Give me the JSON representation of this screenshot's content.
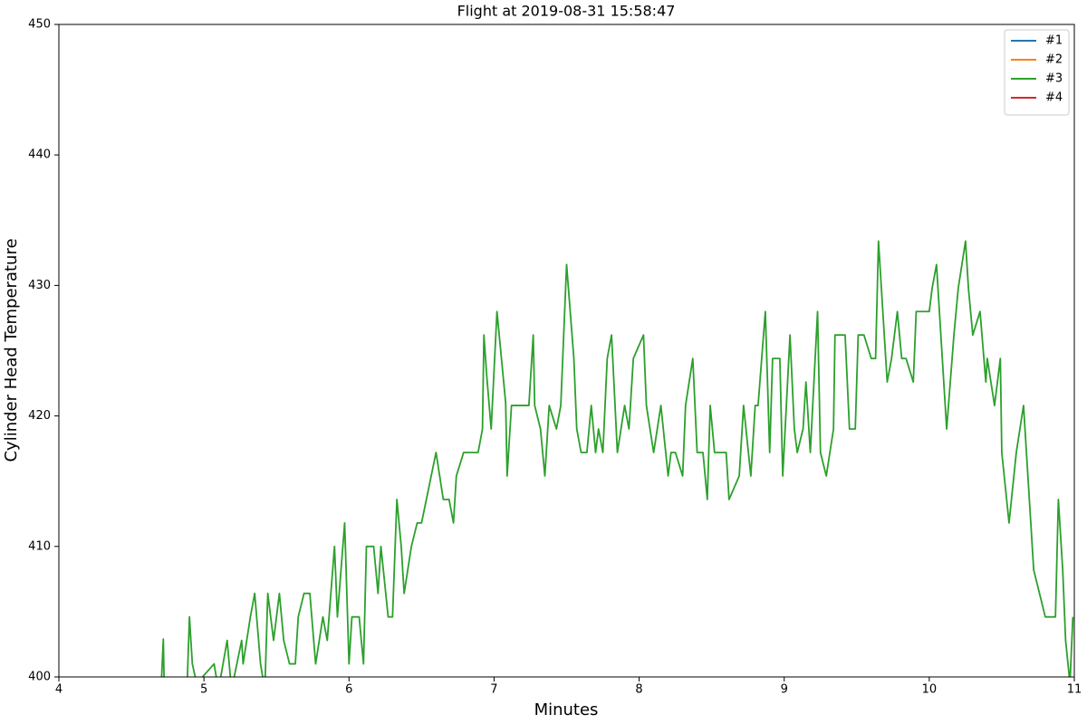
{
  "chart_data": {
    "type": "line",
    "title": "Flight at 2019-08-31 15:58:47",
    "xlabel": "Minutes",
    "ylabel": "Cylinder Head Temperature",
    "xlim": [
      4,
      11
    ],
    "xticks": [
      4,
      5,
      6,
      7,
      8,
      9,
      10,
      11
    ],
    "ylim": [
      400,
      450
    ],
    "yticks": [
      400,
      410,
      420,
      430,
      440,
      450
    ],
    "legend": "upper right",
    "x": [
      4.7,
      4.72,
      4.73,
      4.88,
      4.9,
      4.92,
      4.95,
      5.07,
      5.1,
      5.16,
      5.19,
      5.26,
      5.27,
      5.32,
      5.35,
      5.39,
      5.42,
      5.44,
      5.48,
      5.52,
      5.55,
      5.59,
      5.63,
      5.65,
      5.69,
      5.73,
      5.77,
      5.82,
      5.85,
      5.9,
      5.92,
      5.97,
      6.0,
      6.02,
      6.07,
      6.1,
      6.12,
      6.17,
      6.2,
      6.22,
      6.27,
      6.3,
      6.33,
      6.36,
      6.38,
      6.43,
      6.47,
      6.5,
      6.6,
      6.65,
      6.69,
      6.72,
      6.74,
      6.79,
      6.89,
      6.92,
      6.93,
      6.95,
      6.98,
      7.02,
      7.08,
      7.09,
      7.12,
      7.24,
      7.27,
      7.28,
      7.32,
      7.35,
      7.38,
      7.43,
      7.46,
      7.5,
      7.55,
      7.57,
      7.6,
      7.64,
      7.67,
      7.7,
      7.72,
      7.75,
      7.78,
      7.81,
      7.85,
      7.9,
      7.93,
      7.96,
      8.03,
      8.05,
      8.1,
      8.15,
      8.2,
      8.22,
      8.25,
      8.3,
      8.32,
      8.37,
      8.4,
      8.44,
      8.47,
      8.49,
      8.52,
      8.6,
      8.62,
      8.69,
      8.72,
      8.77,
      8.8,
      8.82,
      8.87,
      8.9,
      8.92,
      8.97,
      8.99,
      9.04,
      9.07,
      9.09,
      9.13,
      9.15,
      9.18,
      9.23,
      9.25,
      9.29,
      9.34,
      9.35,
      9.42,
      9.45,
      9.49,
      9.51,
      9.55,
      9.6,
      9.63,
      9.65,
      9.69,
      9.71,
      9.74,
      9.78,
      9.81,
      9.84,
      9.89,
      9.91,
      10.0,
      10.02,
      10.05,
      10.12,
      10.17,
      10.2,
      10.25,
      10.27,
      10.3,
      10.35,
      10.39,
      10.4,
      10.45,
      10.49,
      10.5,
      10.55,
      10.6,
      10.65,
      10.68,
      10.72,
      10.8,
      10.87,
      10.89,
      10.92,
      10.94,
      10.97,
      10.99
    ],
    "series": [
      {
        "name": "#1",
        "color": "#1f77b4",
        "values": [
          null,
          null,
          null,
          null,
          null,
          null,
          null,
          null,
          null,
          null,
          null,
          null,
          null,
          null,
          null,
          null,
          null,
          null,
          null,
          null,
          null,
          null,
          null,
          null,
          null,
          null,
          null,
          null,
          null,
          null,
          null,
          null,
          null,
          null,
          null,
          null,
          null,
          null,
          null,
          null,
          null,
          null,
          null,
          null,
          null,
          null,
          null,
          null,
          null,
          null,
          null,
          null,
          null,
          null,
          null,
          null,
          null,
          null,
          null,
          null,
          null,
          null,
          null,
          null,
          null,
          null,
          null,
          null,
          null,
          null,
          null,
          null,
          null,
          null,
          null,
          null,
          null,
          null,
          null,
          null,
          null,
          null,
          null,
          null,
          null,
          null,
          null,
          null,
          null,
          null,
          null,
          null,
          null,
          null,
          null,
          null,
          null,
          null,
          null,
          null,
          null,
          null,
          null,
          null,
          null,
          null,
          null,
          null,
          null,
          null,
          null,
          null,
          null,
          null,
          null,
          null,
          null,
          null,
          null,
          null,
          null,
          null,
          null,
          null,
          null,
          null,
          null,
          null,
          null,
          null,
          null,
          null,
          null,
          null,
          null,
          null,
          null,
          null,
          null,
          null,
          null,
          null,
          null,
          null,
          null,
          null,
          null,
          null,
          null,
          null,
          null,
          null,
          null,
          null,
          null,
          null,
          null,
          null,
          null,
          null,
          null,
          null,
          null,
          null,
          null,
          null,
          null
        ]
      },
      {
        "name": "#2",
        "color": "#ff7f0e",
        "values": [
          null,
          null,
          null,
          null,
          null,
          null,
          null,
          null,
          null,
          null,
          null,
          null,
          null,
          null,
          null,
          null,
          null,
          null,
          null,
          null,
          null,
          null,
          null,
          null,
          null,
          null,
          null,
          null,
          null,
          null,
          null,
          null,
          null,
          null,
          null,
          null,
          null,
          null,
          null,
          null,
          null,
          null,
          null,
          null,
          null,
          null,
          null,
          null,
          null,
          null,
          null,
          null,
          null,
          null,
          null,
          null,
          null,
          null,
          null,
          null,
          null,
          null,
          null,
          null,
          null,
          null,
          null,
          null,
          null,
          null,
          null,
          null,
          null,
          null,
          null,
          null,
          null,
          null,
          null,
          null,
          null,
          null,
          null,
          null,
          null,
          null,
          null,
          null,
          null,
          null,
          null,
          null,
          null,
          null,
          null,
          null,
          null,
          null,
          null,
          null,
          null,
          null,
          null,
          null,
          null,
          null,
          null,
          null,
          null,
          null,
          null,
          null,
          null,
          null,
          null,
          null,
          null,
          null,
          null,
          null,
          null,
          null,
          null,
          null,
          null,
          null,
          null,
          null,
          null,
          null,
          null,
          null,
          null,
          null,
          null,
          null,
          null,
          null,
          null,
          null,
          null,
          null,
          null,
          null,
          null,
          null,
          null,
          null,
          null,
          null,
          null,
          null,
          null,
          null,
          null,
          null,
          null,
          null,
          null,
          null,
          null,
          null,
          null,
          null,
          null,
          null,
          null
        ]
      },
      {
        "name": "#3",
        "color": "#2ca02c",
        "values": [
          398,
          402.9,
          397,
          398,
          404.6,
          401.0,
          399.5,
          401.0,
          399,
          402.8,
          399,
          402.8,
          401.0,
          404.6,
          406.4,
          401.0,
          399,
          406.4,
          402.8,
          406.4,
          402.8,
          401.0,
          401.0,
          404.6,
          406.4,
          406.4,
          401.0,
          404.6,
          402.8,
          410.0,
          404.6,
          411.8,
          401.0,
          404.6,
          404.6,
          401.0,
          410.0,
          410.0,
          406.4,
          410.0,
          404.6,
          404.6,
          413.6,
          410.0,
          406.4,
          410.0,
          411.8,
          411.8,
          417.2,
          413.6,
          413.6,
          411.8,
          415.4,
          417.2,
          417.2,
          419.0,
          426.2,
          423.0,
          419.0,
          428.0,
          421.0,
          415.4,
          420.8,
          420.8,
          426.2,
          420.8,
          419.0,
          415.4,
          420.8,
          419.0,
          420.8,
          431.6,
          424.4,
          419.0,
          417.2,
          417.2,
          420.8,
          417.2,
          419.0,
          417.2,
          424.4,
          426.2,
          417.2,
          420.8,
          419.0,
          424.4,
          426.2,
          420.8,
          417.2,
          420.8,
          415.4,
          417.2,
          417.2,
          415.4,
          420.8,
          424.4,
          417.2,
          417.2,
          413.6,
          420.8,
          417.2,
          417.2,
          413.6,
          415.4,
          420.8,
          415.4,
          420.8,
          420.8,
          428.0,
          417.2,
          424.4,
          424.4,
          415.4,
          426.2,
          419.0,
          417.2,
          419.0,
          422.6,
          417.2,
          428.0,
          417.2,
          415.4,
          419.0,
          426.2,
          426.2,
          419.0,
          419.0,
          426.2,
          426.2,
          424.4,
          424.4,
          433.4,
          426.2,
          422.6,
          424.4,
          428.0,
          424.4,
          424.4,
          422.6,
          428.0,
          428.0,
          429.8,
          431.6,
          419.0,
          426.2,
          429.8,
          433.4,
          429.8,
          426.2,
          428.0,
          422.6,
          424.4,
          420.8,
          424.4,
          417.2,
          411.8,
          417.2,
          420.8,
          415.4,
          408.2,
          404.6,
          404.6,
          413.6,
          408.2,
          402.8,
          399.5,
          404.6
        ]
      },
      {
        "name": "#4",
        "color": "#d62728",
        "values": [
          null,
          null,
          null,
          null,
          null,
          null,
          null,
          null,
          null,
          null,
          null,
          null,
          null,
          null,
          null,
          null,
          null,
          null,
          null,
          null,
          null,
          null,
          null,
          null,
          null,
          null,
          null,
          null,
          null,
          null,
          null,
          null,
          null,
          null,
          null,
          null,
          null,
          null,
          null,
          null,
          null,
          null,
          null,
          null,
          null,
          null,
          null,
          null,
          null,
          null,
          null,
          null,
          null,
          null,
          null,
          null,
          null,
          null,
          null,
          null,
          null,
          null,
          null,
          null,
          null,
          null,
          null,
          null,
          null,
          null,
          null,
          null,
          null,
          null,
          null,
          null,
          null,
          null,
          null,
          null,
          null,
          null,
          null,
          null,
          null,
          null,
          null,
          null,
          null,
          null,
          null,
          null,
          null,
          null,
          null,
          null,
          null,
          null,
          null,
          null,
          null,
          null,
          null,
          null,
          null,
          null,
          null,
          null,
          null,
          null,
          null,
          null,
          null,
          null,
          null,
          null,
          null,
          null,
          null,
          null,
          null,
          null,
          null,
          null,
          null,
          null,
          null,
          null,
          null,
          null,
          null,
          null,
          null,
          null,
          null,
          null,
          null,
          null,
          null,
          null,
          null,
          null,
          null,
          null,
          null,
          null,
          null,
          null,
          null,
          null,
          null,
          null,
          null,
          null,
          null,
          null,
          null,
          null,
          null,
          null,
          null,
          null,
          null,
          null,
          null,
          null,
          null
        ]
      }
    ]
  }
}
